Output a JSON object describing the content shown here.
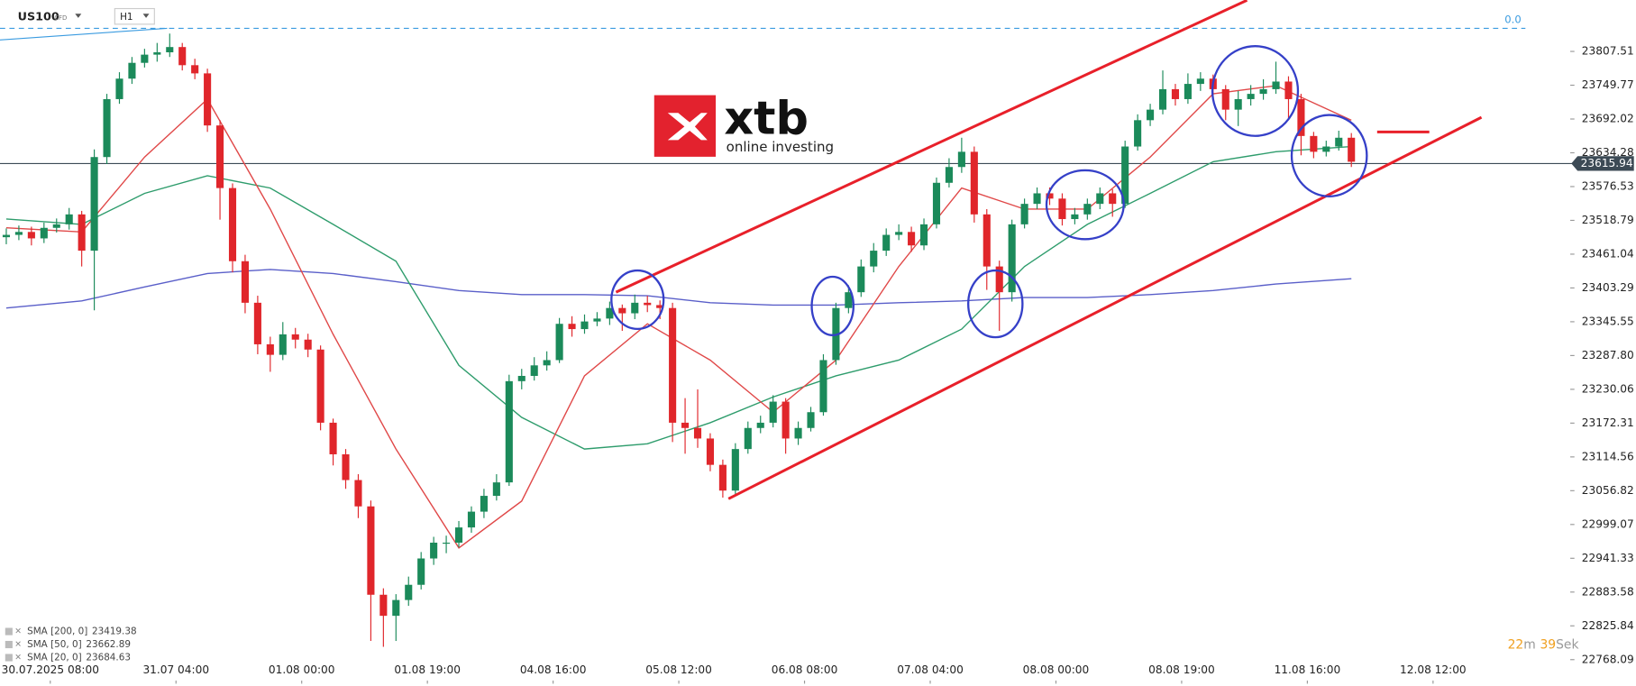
{
  "header": {
    "symbol": "US100",
    "symbol_type": "CFD",
    "timeframe": "H1"
  },
  "logo": {
    "name": "xtb",
    "tagline": "online investing"
  },
  "countdown": {
    "minutes": 22,
    "minutes_unit": "m",
    "seconds": 39,
    "seconds_unit": "Sek"
  },
  "chart_data": {
    "type": "candlestick",
    "up_color": "#1b8a5a",
    "down_color": "#e0262b",
    "x": [
      -7,
      -5,
      -3,
      -1,
      1,
      3,
      5,
      7,
      9,
      11,
      13,
      15,
      17,
      19,
      21,
      23,
      25,
      27,
      29,
      31,
      33,
      35,
      37,
      39,
      41,
      43,
      45,
      47,
      49,
      51,
      53,
      55,
      57,
      59,
      61,
      63,
      65,
      67,
      69,
      71,
      73,
      75,
      77,
      79,
      81,
      83,
      85,
      87,
      89,
      91,
      93,
      95,
      97,
      99,
      101,
      103,
      105,
      107,
      109,
      111,
      113,
      115,
      117,
      119,
      121,
      123,
      125,
      127,
      129,
      131,
      133,
      135,
      137,
      139,
      141,
      143,
      145,
      147,
      149,
      151,
      153,
      155,
      157,
      159,
      161,
      163,
      165,
      167,
      169,
      171,
      173,
      175,
      177,
      179,
      181,
      183,
      185,
      187,
      189,
      191,
      193,
      195,
      197,
      199,
      201,
      203,
      205,
      207
    ],
    "open": [
      23490,
      23494,
      23499,
      23488,
      23506,
      23512,
      23529,
      23467,
      23627,
      23726,
      23761,
      23788,
      23802,
      23806,
      23815,
      23784,
      23770,
      23681,
      23574,
      23449,
      23378,
      23307,
      23289,
      23324,
      23315,
      23298,
      23173,
      23119,
      23075,
      23030,
      22879,
      22843,
      22870,
      22896,
      22941,
      22968,
      22968,
      22994,
      23021,
      23048,
      23071,
      23244,
      23253,
      23271,
      23280,
      23342,
      23333,
      23346,
      23351,
      23369,
      23360,
      23378,
      23374,
      23369,
      23173,
      23164,
      23146,
      23101,
      23057,
      23128,
      23164,
      23173,
      23209,
      23146,
      23164,
      23191,
      23280,
      23369,
      23396,
      23440,
      23467,
      23494,
      23499,
      23476,
      23512,
      23583,
      23610,
      23636,
      23529,
      23440,
      23396,
      23512,
      23547,
      23565,
      23556,
      23521,
      23529,
      23547,
      23565,
      23547,
      23645,
      23690,
      23708,
      23743,
      23726,
      23752,
      23761,
      23743,
      23708,
      23726,
      23735,
      23743,
      23756,
      23726,
      23663,
      23636,
      23645,
      23660
    ],
    "high": [
      23505,
      23510,
      23508,
      23515,
      23522,
      23540,
      23535,
      23640,
      23735,
      23772,
      23798,
      23812,
      23822,
      23838,
      23822,
      23795,
      23778,
      23690,
      23582,
      23460,
      23390,
      23320,
      23345,
      23335,
      23325,
      23305,
      23180,
      23128,
      23085,
      23040,
      22890,
      22880,
      22910,
      22952,
      22978,
      22980,
      23005,
      23030,
      23060,
      23085,
      23255,
      23265,
      23285,
      23295,
      23352,
      23355,
      23358,
      23362,
      23380,
      23375,
      23392,
      23390,
      23382,
      23378,
      23215,
      23230,
      23155,
      23110,
      23138,
      23175,
      23185,
      23220,
      23215,
      23175,
      23200,
      23290,
      23378,
      23408,
      23452,
      23480,
      23505,
      23512,
      23508,
      23522,
      23592,
      23625,
      23660,
      23645,
      23538,
      23450,
      23520,
      23556,
      23575,
      23575,
      23565,
      23540,
      23556,
      23575,
      23572,
      23655,
      23700,
      23718,
      23775,
      23752,
      23770,
      23772,
      23768,
      23750,
      23740,
      23750,
      23760,
      23790,
      23765,
      23735,
      23670,
      23655,
      23672,
      23668
    ],
    "low": [
      23478,
      23485,
      23476,
      23480,
      23498,
      23503,
      23440,
      23365,
      23615,
      23718,
      23752,
      23780,
      23790,
      23798,
      23775,
      23760,
      23670,
      23520,
      23430,
      23360,
      23290,
      23260,
      23280,
      23300,
      23285,
      23160,
      23100,
      23060,
      23010,
      22800,
      22790,
      22800,
      22860,
      22888,
      22930,
      22950,
      22960,
      22985,
      23010,
      23040,
      23065,
      23230,
      23245,
      23262,
      23275,
      23320,
      23325,
      23338,
      23340,
      23330,
      23350,
      23362,
      23350,
      23140,
      23120,
      23130,
      23090,
      23045,
      23050,
      23120,
      23155,
      23165,
      23120,
      23135,
      23158,
      23185,
      23272,
      23360,
      23388,
      23430,
      23458,
      23485,
      23465,
      23468,
      23505,
      23575,
      23600,
      23515,
      23400,
      23330,
      23380,
      23505,
      23538,
      23545,
      23510,
      23512,
      23520,
      23538,
      23525,
      23540,
      23638,
      23680,
      23700,
      23715,
      23718,
      23740,
      23732,
      23690,
      23680,
      23715,
      23725,
      23735,
      23690,
      23630,
      23625,
      23628,
      23638,
      23610
    ],
    "close": [
      23494,
      23499,
      23488,
      23506,
      23512,
      23529,
      23467,
      23627,
      23726,
      23761,
      23788,
      23802,
      23806,
      23815,
      23784,
      23770,
      23681,
      23574,
      23449,
      23378,
      23307,
      23289,
      23324,
      23315,
      23298,
      23173,
      23119,
      23075,
      23030,
      22879,
      22843,
      22870,
      22896,
      22941,
      22968,
      22968,
      22994,
      23021,
      23048,
      23071,
      23244,
      23253,
      23271,
      23280,
      23342,
      23333,
      23346,
      23351,
      23369,
      23360,
      23378,
      23374,
      23369,
      23173,
      23164,
      23146,
      23101,
      23057,
      23128,
      23164,
      23173,
      23209,
      23146,
      23164,
      23191,
      23280,
      23369,
      23396,
      23440,
      23467,
      23494,
      23499,
      23476,
      23512,
      23583,
      23610,
      23636,
      23529,
      23440,
      23396,
      23512,
      23547,
      23565,
      23556,
      23521,
      23529,
      23547,
      23565,
      23547,
      23645,
      23690,
      23708,
      23743,
      23726,
      23752,
      23761,
      23743,
      23708,
      23726,
      23735,
      23743,
      23756,
      23726,
      23663,
      23636,
      23645,
      23660,
      23619
    ],
    "xlim": [
      -8,
      241
    ],
    "xticks": [
      {
        "value": 0,
        "label": "30.07.2025  08:00"
      },
      {
        "value": 20,
        "label": "31.07  04:00"
      },
      {
        "value": 40,
        "label": "01.08  00:00"
      },
      {
        "value": 60,
        "label": "01.08  19:00"
      },
      {
        "value": 80,
        "label": "04.08  16:00"
      },
      {
        "value": 100,
        "label": "05.08  12:00"
      },
      {
        "value": 120,
        "label": "06.08  08:00"
      },
      {
        "value": 140,
        "label": "07.08  04:00"
      },
      {
        "value": 160,
        "label": "08.08  00:00"
      },
      {
        "value": 180,
        "label": "08.08  19:00"
      },
      {
        "value": 200,
        "label": "11.08  16:00"
      },
      {
        "value": 220,
        "label": "12.08  12:00"
      }
    ],
    "ylim": [
      22727,
      23895
    ],
    "yticks": [
      23807.51,
      23749.77,
      23692.02,
      23634.28,
      23576.53,
      23518.79,
      23461.04,
      23403.29,
      23345.55,
      {
        "value": 23287.8,
        "label": "23287.80"
      },
      23230.06,
      23172.31,
      23114.56,
      23056.82,
      22999.07,
      22941.33,
      22883.58,
      22825.84,
      22768.09
    ],
    "last_price": 23615.94,
    "level_line": {
      "label": "0.0",
      "price": 23847,
      "color": "#3a9be0"
    },
    "moving_averages": [
      {
        "name": "SMA [200, 0]",
        "last_value": 23419.38,
        "color": "#5a5fc9",
        "x": [
          -7,
          5,
          15,
          25,
          35,
          45,
          55,
          65,
          75,
          85,
          95,
          105,
          115,
          125,
          135,
          145,
          155,
          165,
          175,
          185,
          195,
          207
        ],
        "values": [
          23369,
          23381,
          23405,
          23428,
          23435,
          23428,
          23414,
          23399,
          23392,
          23392,
          23390,
          23378,
          23374,
          23374,
          23378,
          23381,
          23387,
          23387,
          23392,
          23399,
          23410,
          23419
        ]
      },
      {
        "name": "SMA [50, 0]",
        "last_value": 23662.89,
        "color": "#2e9c6c",
        "x": [
          -7,
          5,
          15,
          25,
          35,
          45,
          55,
          65,
          75,
          85,
          95,
          105,
          115,
          125,
          135,
          145,
          155,
          165,
          175,
          185,
          195,
          207
        ],
        "values": [
          23521,
          23512,
          23565,
          23595,
          23574,
          23512,
          23449,
          23271,
          23182,
          23128,
          23137,
          23173,
          23217,
          23253,
          23280,
          23333,
          23440,
          23512,
          23565,
          23619,
          23636,
          23645
        ]
      },
      {
        "name": "SMA [20, 0]",
        "last_value": 23684.63,
        "color": "#e04848",
        "x": [
          -7,
          5,
          15,
          25,
          35,
          45,
          55,
          65,
          75,
          85,
          95,
          105,
          115,
          125,
          135,
          145,
          155,
          165,
          175,
          185,
          195,
          207
        ],
        "values": [
          23506,
          23499,
          23627,
          23726,
          23538,
          23324,
          23128,
          22959,
          23039,
          23253,
          23342,
          23280,
          23191,
          23280,
          23440,
          23574,
          23538,
          23538,
          23627,
          23735,
          23749,
          23690
        ]
      }
    ],
    "trendlines": [
      {
        "color": "#e8202a",
        "x": [
          90,
          190.4
        ],
        "values": [
          23396,
          23895
        ]
      },
      {
        "color": "#e8202a",
        "x": [
          107.9,
          227.7
        ],
        "values": [
          23043,
          23695
        ]
      },
      {
        "color": "#e8202a",
        "x": [
          211.1,
          219.4
        ],
        "values": [
          23670,
          23670
        ]
      },
      {
        "color": "#3a9be0",
        "x": [
          -8,
          18.6
        ],
        "values": [
          23827,
          23847
        ]
      }
    ]
  }
}
